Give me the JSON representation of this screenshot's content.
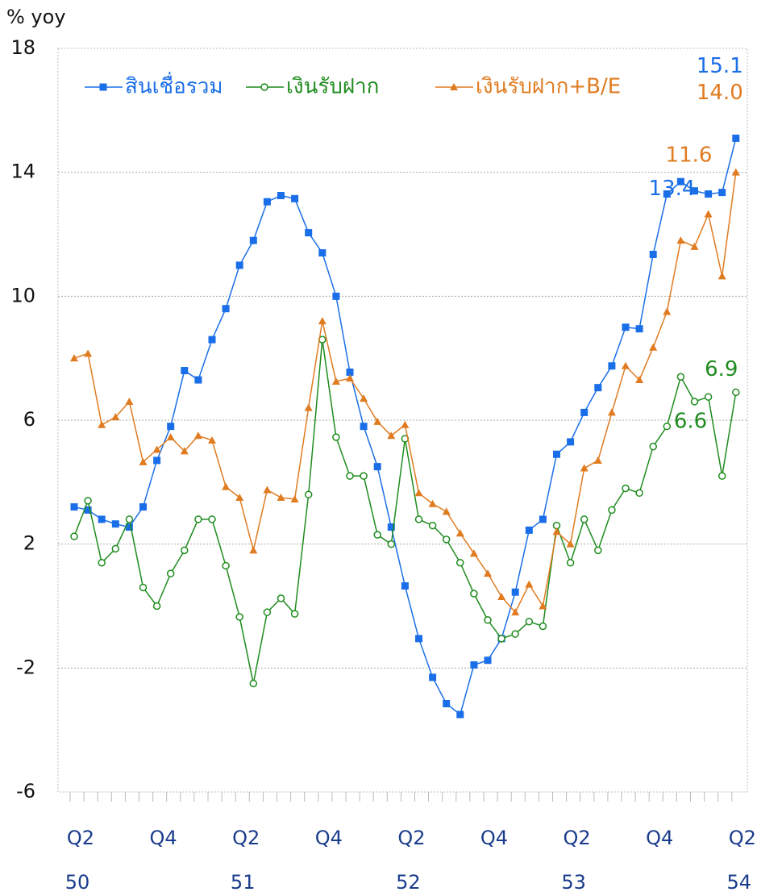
{
  "chart_data": {
    "type": "line",
    "ylabel": "% yoy",
    "categories": [
      "Q2",
      null,
      null,
      null,
      null,
      null,
      "Q4",
      null,
      null,
      null,
      null,
      null,
      "Q2",
      null,
      null,
      null,
      null,
      null,
      "Q4",
      null,
      null,
      null,
      null,
      null,
      "Q2",
      null,
      null,
      null,
      null,
      null,
      "Q4",
      null,
      null,
      null,
      null,
      null,
      "Q2",
      null,
      null,
      null,
      null,
      null,
      "Q4",
      null,
      null,
      null,
      null,
      null,
      "Q2"
    ],
    "year_labels": [
      "50",
      null,
      null,
      null,
      null,
      null,
      null,
      null,
      null,
      null,
      null,
      null,
      "51",
      null,
      null,
      null,
      null,
      null,
      null,
      null,
      null,
      null,
      null,
      null,
      "52",
      null,
      null,
      null,
      null,
      null,
      null,
      null,
      null,
      null,
      null,
      null,
      "53",
      null,
      null,
      null,
      null,
      null,
      null,
      null,
      null,
      null,
      null,
      null,
      "54"
    ],
    "ylim": [
      -6,
      18
    ],
    "yticks": [
      -6,
      -2,
      2,
      6,
      10,
      14,
      18
    ],
    "grid": true,
    "legend": "upper left",
    "series": [
      {
        "name": "สินเชื่อรวม",
        "color": "#1a6ee8",
        "marker": "square",
        "values": [
          3.2,
          3.1,
          2.8,
          2.65,
          2.55,
          3.2,
          4.7,
          5.8,
          7.6,
          7.3,
          8.6,
          9.6,
          11.0,
          11.8,
          13.05,
          13.25,
          13.15,
          12.05,
          11.4,
          10.0,
          7.55,
          5.8,
          4.5,
          2.55,
          0.65,
          -1.05,
          -2.3,
          -3.15,
          -3.5,
          -1.9,
          -1.75,
          -1.05,
          0.45,
          2.45,
          2.8,
          4.9,
          5.3,
          6.25,
          7.05,
          7.75,
          9.0,
          8.95,
          11.35,
          13.3,
          13.7,
          13.4,
          13.3,
          13.35,
          15.1
        ],
        "value_labels": [
          null,
          null,
          null,
          null,
          null,
          null,
          null,
          null,
          null,
          null,
          null,
          null,
          null,
          null,
          null,
          null,
          null,
          null,
          null,
          null,
          null,
          null,
          null,
          null,
          null,
          null,
          null,
          null,
          null,
          null,
          null,
          null,
          null,
          null,
          null,
          null,
          null,
          null,
          null,
          null,
          null,
          null,
          null,
          null,
          null,
          "13.4",
          null,
          null,
          "15.1"
        ]
      },
      {
        "name": "เงินรับฝาก",
        "color": "#1e8c1e",
        "marker": "circle",
        "values": [
          2.25,
          3.4,
          1.4,
          1.85,
          2.8,
          0.6,
          0.0,
          1.05,
          1.8,
          2.8,
          2.8,
          1.3,
          -0.35,
          -2.5,
          -0.2,
          0.25,
          -0.25,
          3.6,
          8.6,
          5.45,
          4.2,
          4.2,
          2.3,
          2.0,
          5.4,
          2.8,
          2.6,
          2.15,
          1.4,
          0.4,
          -0.45,
          -1.05,
          -0.9,
          -0.5,
          -0.65,
          2.6,
          1.4,
          2.8,
          1.8,
          3.1,
          3.8,
          3.65,
          5.15,
          5.8,
          7.4,
          6.6,
          6.75,
          4.2,
          6.9
        ],
        "value_labels": [
          null,
          null,
          null,
          null,
          null,
          null,
          null,
          null,
          null,
          null,
          null,
          null,
          null,
          null,
          null,
          null,
          null,
          null,
          null,
          null,
          null,
          null,
          null,
          null,
          null,
          null,
          null,
          null,
          null,
          null,
          null,
          null,
          null,
          null,
          null,
          null,
          null,
          null,
          null,
          null,
          null,
          null,
          null,
          null,
          null,
          "6.6",
          null,
          null,
          "6.9"
        ]
      },
      {
        "name": "เงินรับฝาก+B/E",
        "color": "#e07b20",
        "marker": "triangle",
        "values": [
          8.0,
          8.15,
          5.85,
          6.1,
          6.6,
          4.65,
          5.05,
          5.45,
          5.0,
          5.5,
          5.35,
          3.85,
          3.5,
          1.8,
          3.75,
          3.5,
          3.45,
          6.4,
          9.2,
          7.25,
          7.35,
          6.7,
          5.95,
          5.5,
          5.85,
          3.65,
          3.3,
          3.05,
          2.35,
          1.7,
          1.05,
          0.3,
          -0.2,
          0.7,
          0.0,
          2.4,
          2.0,
          4.45,
          4.7,
          6.25,
          7.75,
          7.3,
          8.35,
          9.5,
          11.8,
          11.6,
          12.65,
          10.65,
          14.0
        ],
        "value_labels": [
          null,
          null,
          null,
          null,
          null,
          null,
          null,
          null,
          null,
          null,
          null,
          null,
          null,
          null,
          null,
          null,
          null,
          null,
          null,
          null,
          null,
          null,
          null,
          null,
          null,
          null,
          null,
          null,
          null,
          null,
          null,
          null,
          null,
          null,
          null,
          null,
          null,
          null,
          null,
          null,
          null,
          null,
          null,
          null,
          null,
          "11.6",
          null,
          null,
          "14.0"
        ]
      }
    ]
  }
}
